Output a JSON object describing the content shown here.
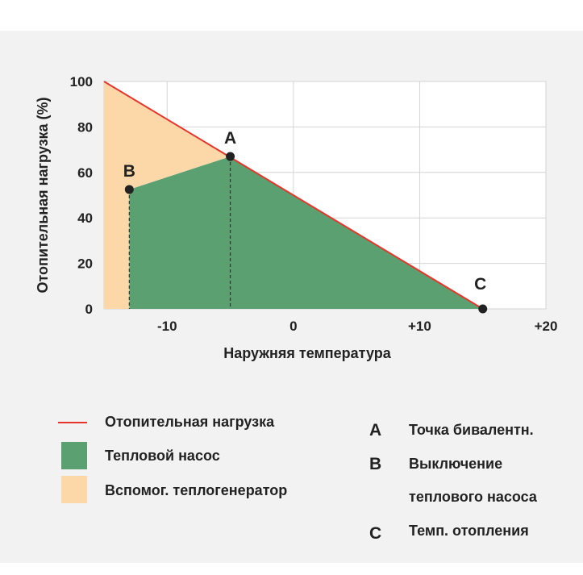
{
  "colors": {
    "load_line": "#e8352a",
    "heat_pump": "#5aa070",
    "aux": "#fcd8a9",
    "grid": "#d4d4d4",
    "point": "#222222"
  },
  "chart_data": {
    "type": "area",
    "xlabel": "Наружняя температура",
    "ylabel": "Отопительная нагрузка (%)",
    "xlim": [
      -15,
      20
    ],
    "ylim": [
      0,
      100
    ],
    "x_ticks": [
      -10,
      0,
      10,
      20
    ],
    "x_tick_labels": [
      "-10",
      "0",
      "+10",
      "+20"
    ],
    "y_ticks": [
      0,
      20,
      40,
      60,
      80,
      100
    ],
    "y_tick_labels": [
      "0",
      "20",
      "40",
      "60",
      "80",
      "100"
    ],
    "grid": true,
    "series": [
      {
        "name": "Отопительная нагрузка",
        "type": "line",
        "points": [
          [
            -15,
            100
          ],
          [
            15,
            0
          ]
        ]
      },
      {
        "name": "Тепловой насос",
        "type": "area",
        "points": [
          [
            -13,
            0
          ],
          [
            -13,
            52.5
          ],
          [
            -5,
            67
          ],
          [
            15,
            0
          ]
        ]
      },
      {
        "name": "Вспомог. теплогенератор",
        "type": "area",
        "points": [
          [
            -15,
            0
          ],
          [
            -15,
            100
          ],
          [
            -5,
            67
          ],
          [
            -13,
            52.5
          ],
          [
            -13,
            0
          ]
        ]
      }
    ],
    "points": [
      {
        "label": "A",
        "x": -5,
        "y": 67
      },
      {
        "label": "B",
        "x": -13,
        "y": 52.5
      },
      {
        "label": "C",
        "x": 15,
        "y": 0
      }
    ]
  },
  "legend": [
    {
      "label": "Отопительная нагрузка",
      "icon": "line"
    },
    {
      "label": "Тепловой насос",
      "icon": "swatch-green"
    },
    {
      "label": "Вспомог. теплогенератор",
      "icon": "swatch-orange"
    }
  ],
  "point_legend": [
    {
      "letter": "A",
      "lines": [
        "Точка бивалентн."
      ]
    },
    {
      "letter": "B",
      "lines": [
        "Выключение",
        "теплового насоса"
      ]
    },
    {
      "letter": "C",
      "lines": [
        "Темп. отопления"
      ]
    }
  ]
}
